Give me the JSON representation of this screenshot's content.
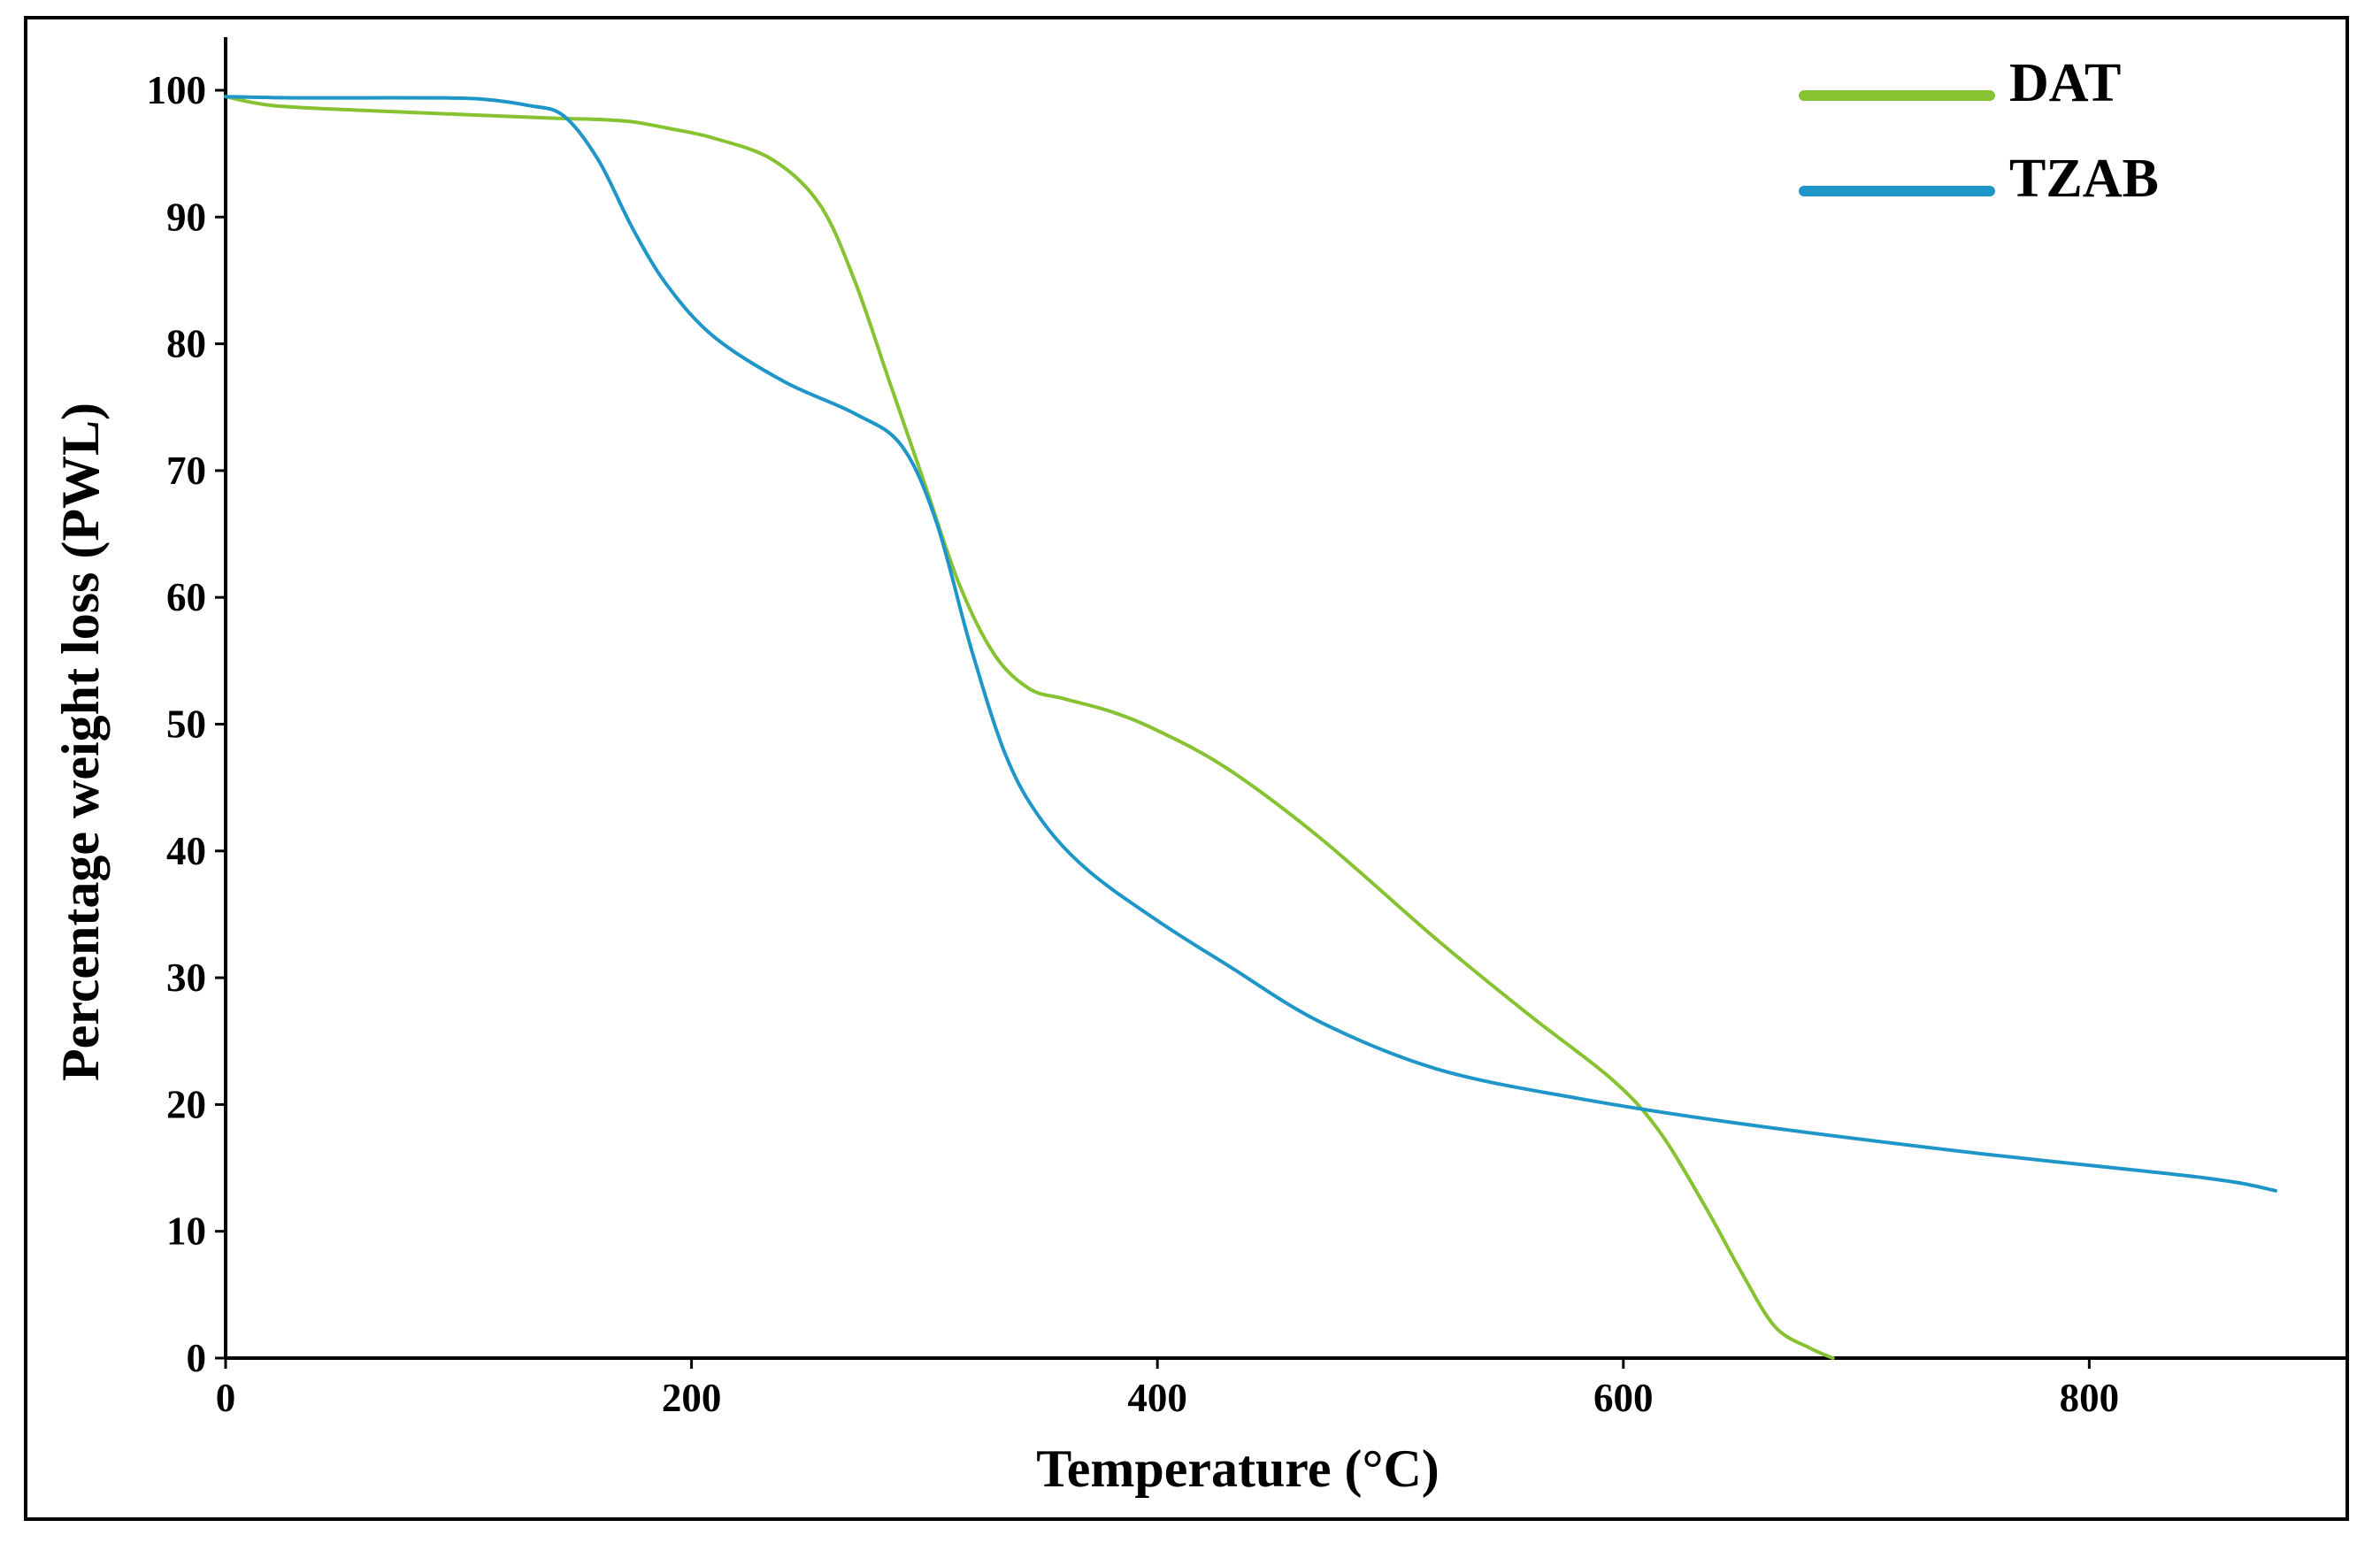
{
  "chart_data": {
    "type": "line",
    "title": "",
    "xlabel": "Temperature (°C)",
    "ylabel": "Percentage weight loss (PWL)",
    "xlim": [
      0,
      910
    ],
    "ylim": [
      0,
      100
    ],
    "xticks": [
      0,
      200,
      400,
      600,
      800
    ],
    "yticks": [
      0,
      10,
      20,
      30,
      40,
      50,
      60,
      70,
      80,
      90,
      100
    ],
    "grid": false,
    "legend_position": "top-right",
    "series": [
      {
        "name": "DAT",
        "color": "#86c232",
        "x": [
          0,
          20,
          60,
          100,
          140,
          160,
          175,
          190,
          210,
          235,
          255,
          270,
          285,
          300,
          315,
          330,
          345,
          360,
          380,
          400,
          430,
          470,
          520,
          560,
          595,
          615,
          635,
          650,
          665,
          680,
          690
        ],
        "y": [
          99.5,
          98.8,
          98.4,
          98.1,
          97.8,
          97.7,
          97.5,
          97.0,
          96.2,
          94.5,
          91,
          85,
          77,
          69,
          61,
          55.5,
          52.8,
          52.0,
          51.0,
          49.5,
          46.5,
          41,
          33,
          27,
          22,
          18,
          12,
          7,
          2.5,
          0.8,
          0
        ]
      },
      {
        "name": "TZAB",
        "color": "#1e96c8",
        "x": [
          0,
          30,
          60,
          90,
          110,
          130,
          145,
          160,
          175,
          190,
          210,
          240,
          270,
          290,
          305,
          320,
          335,
          350,
          370,
          400,
          430,
          470,
          520,
          580,
          650,
          750,
          850,
          880
        ],
        "y": [
          99.5,
          99.4,
          99.4,
          99.4,
          99.3,
          98.8,
          98.0,
          94.5,
          89.0,
          84.5,
          80.5,
          77.0,
          74.5,
          72.0,
          66,
          56,
          47.5,
          42.5,
          38.5,
          34.5,
          31,
          26.5,
          22.8,
          20.5,
          18.5,
          16.2,
          14.2,
          13.2
        ]
      }
    ]
  }
}
